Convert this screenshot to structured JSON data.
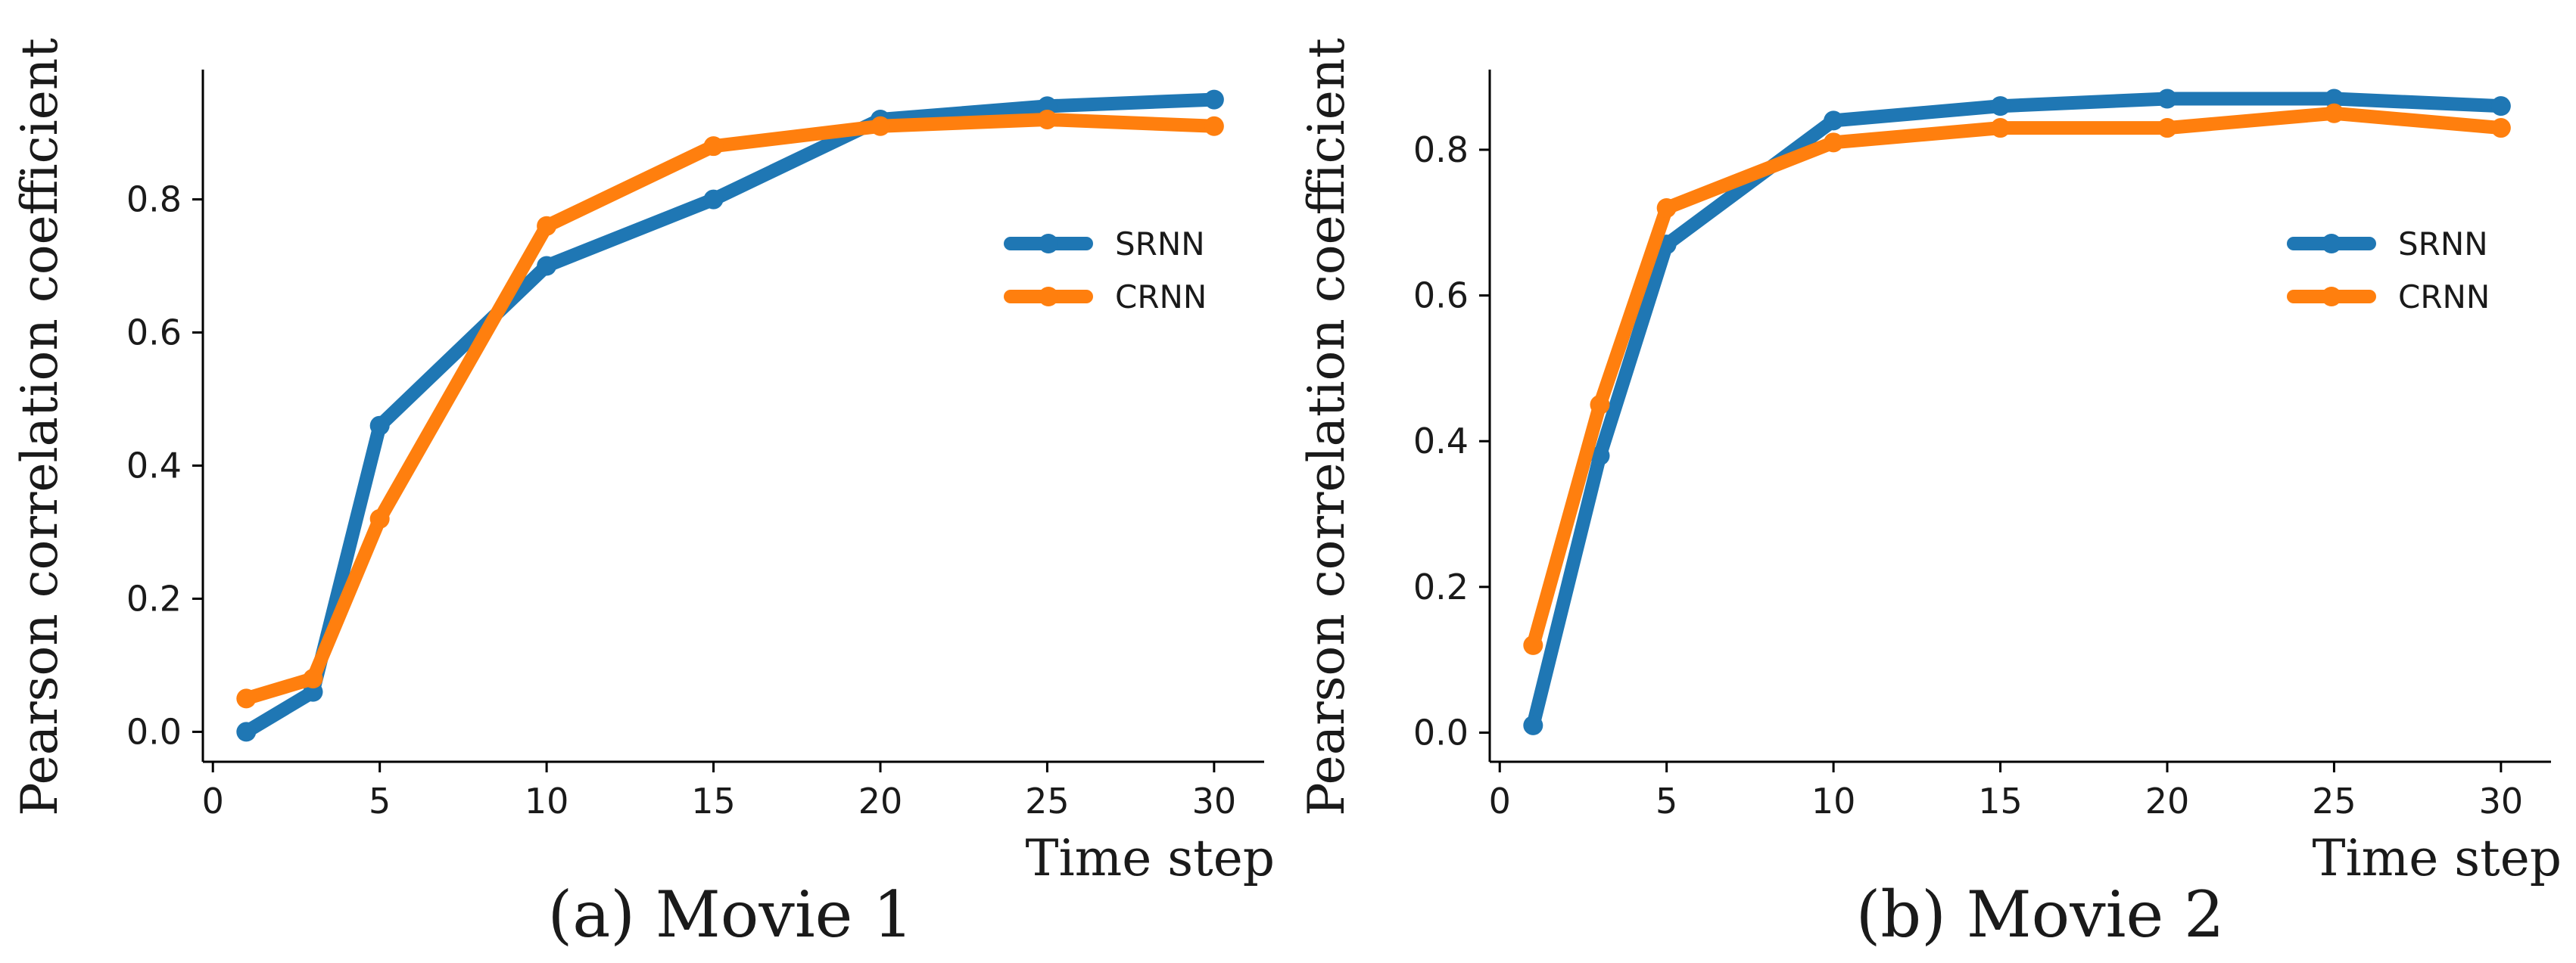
{
  "chart_data": [
    {
      "type": "line",
      "caption": "(a) Movie 1",
      "xlabel": "Time step",
      "ylabel": "Pearson correlation coefficient",
      "xlim": [
        -0.3,
        31.5
      ],
      "ylim": [
        -0.045,
        0.995
      ],
      "xticks": [
        0,
        5,
        10,
        15,
        20,
        25,
        30
      ],
      "yticks": [
        0.0,
        0.2,
        0.4,
        0.6,
        0.8
      ],
      "xtick_labels": [
        "0",
        "5",
        "10",
        "15",
        "20",
        "25",
        "30"
      ],
      "ytick_labels": [
        "0.0",
        "0.2",
        "0.4",
        "0.6",
        "0.8"
      ],
      "x": [
        1,
        3,
        5,
        10,
        15,
        20,
        25,
        30
      ],
      "legend_position": "center-right",
      "series": [
        {
          "name": "SRNN",
          "color": "#1f77b4",
          "values": [
            0.0,
            0.06,
            0.46,
            0.7,
            0.8,
            0.92,
            0.94,
            0.95
          ]
        },
        {
          "name": "CRNN",
          "color": "#ff7f0e",
          "values": [
            0.05,
            0.08,
            0.32,
            0.76,
            0.88,
            0.91,
            0.92,
            0.91
          ]
        }
      ]
    },
    {
      "type": "line",
      "caption": "(b) Movie 2",
      "xlabel": "Time step",
      "ylabel": "Pearson correlation coefficient",
      "xlim": [
        -0.3,
        31.5
      ],
      "ylim": [
        -0.04,
        0.91
      ],
      "xticks": [
        0,
        5,
        10,
        15,
        20,
        25,
        30
      ],
      "yticks": [
        0.0,
        0.2,
        0.4,
        0.6,
        0.8
      ],
      "xtick_labels": [
        "0",
        "5",
        "10",
        "15",
        "20",
        "25",
        "30"
      ],
      "ytick_labels": [
        "0.0",
        "0.2",
        "0.4",
        "0.6",
        "0.8"
      ],
      "x": [
        1,
        3,
        5,
        10,
        15,
        20,
        25,
        30
      ],
      "legend_position": "center-right",
      "series": [
        {
          "name": "SRNN",
          "color": "#1f77b4",
          "values": [
            0.01,
            0.38,
            0.67,
            0.84,
            0.86,
            0.87,
            0.87,
            0.86
          ]
        },
        {
          "name": "CRNN",
          "color": "#ff7f0e",
          "values": [
            0.12,
            0.45,
            0.72,
            0.81,
            0.83,
            0.83,
            0.85,
            0.83
          ]
        }
      ]
    }
  ]
}
